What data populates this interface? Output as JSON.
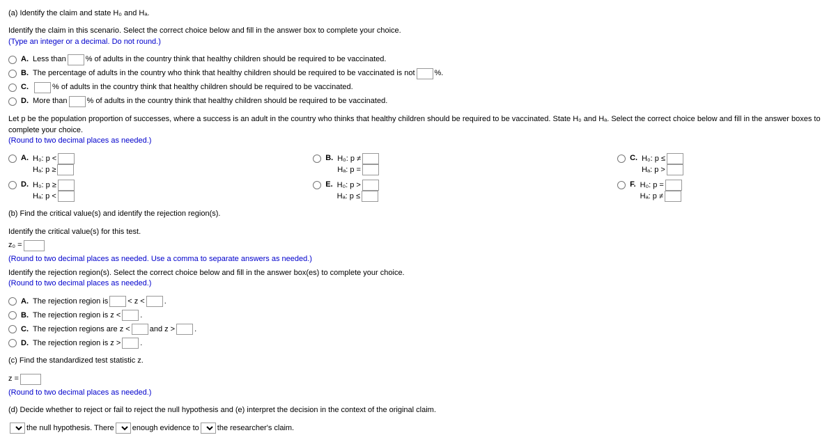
{
  "part_a_title": "(a) Identify the claim and state H₀ and Hₐ.",
  "claim_prompt": "Identify the claim in this scenario. Select the correct choice below and fill in the answer box to complete your choice.",
  "claim_hint": "(Type an integer or a decimal. Do not round.)",
  "claim_choices": {
    "A_pre": "Less than ",
    "A_post": "% of adults in the country think that healthy children should be required to be vaccinated.",
    "B_pre": "The percentage of adults in the country who think that healthy children should be required to be vaccinated is not ",
    "B_post": "%.",
    "C_post": "% of adults in the country think that healthy children should be required to be vaccinated.",
    "D_pre": "More than ",
    "D_post": "% of adults in the country think that healthy children should be required to be vaccinated."
  },
  "p_prompt": "Let p be the population proportion of successes, where a success is an adult in the country who thinks that healthy children should be required to be vaccinated. State H₀ and Hₐ. Select the correct choice below and fill in the answer boxes to complete your choice.",
  "round2": "(Round to two decimal places as needed.)",
  "hyp": {
    "A": {
      "h0": "H₀: p <",
      "ha": "Hₐ: p ≥"
    },
    "B": {
      "h0": "H₀: p ≠",
      "ha": "Hₐ: p ="
    },
    "C": {
      "h0": "H₀: p ≤",
      "ha": "Hₐ: p >"
    },
    "D": {
      "h0": "H₀: p ≥",
      "ha": "Hₐ: p <"
    },
    "E": {
      "h0": "H₀: p >",
      "ha": "Hₐ: p ≤"
    },
    "F": {
      "h0": "H₀: p =",
      "ha": "Hₐ: p ≠"
    }
  },
  "part_b_title": "(b) Find the critical value(s) and identify the rejection region(s).",
  "crit_prompt": "Identify the critical value(s) for this test.",
  "crit_label": "z₀ = ",
  "crit_hint": "(Round to two decimal places as needed. Use a comma to separate answers as needed.)",
  "rej_prompt": "Identify the rejection region(s). Select the correct choice below and fill in the answer box(es) to complete your choice.",
  "rej": {
    "A_pre": "The rejection region is ",
    "A_mid": " < z < ",
    "B_pre": "The rejection region is z < ",
    "C_pre": "The rejection regions are z < ",
    "C_mid": " and z > ",
    "D_pre": "The rejection region is z > "
  },
  "part_c_title": "(c) Find the standardized test statistic z.",
  "z_label": "z = ",
  "z_hint": "(Round to two decimal places as needed.)",
  "part_d_title": "(d) Decide whether to reject or fail to reject the null hypothesis and (e) interpret the decision in the context of the original claim.",
  "decision": {
    "mid1": " the null hypothesis. There ",
    "mid2": " enough evidence to ",
    "end": " the researcher's claim."
  },
  "letters": {
    "A": "A.",
    "B": "B.",
    "C": "C.",
    "D": "D.",
    "E": "E.",
    "F": "F."
  },
  "period": "."
}
